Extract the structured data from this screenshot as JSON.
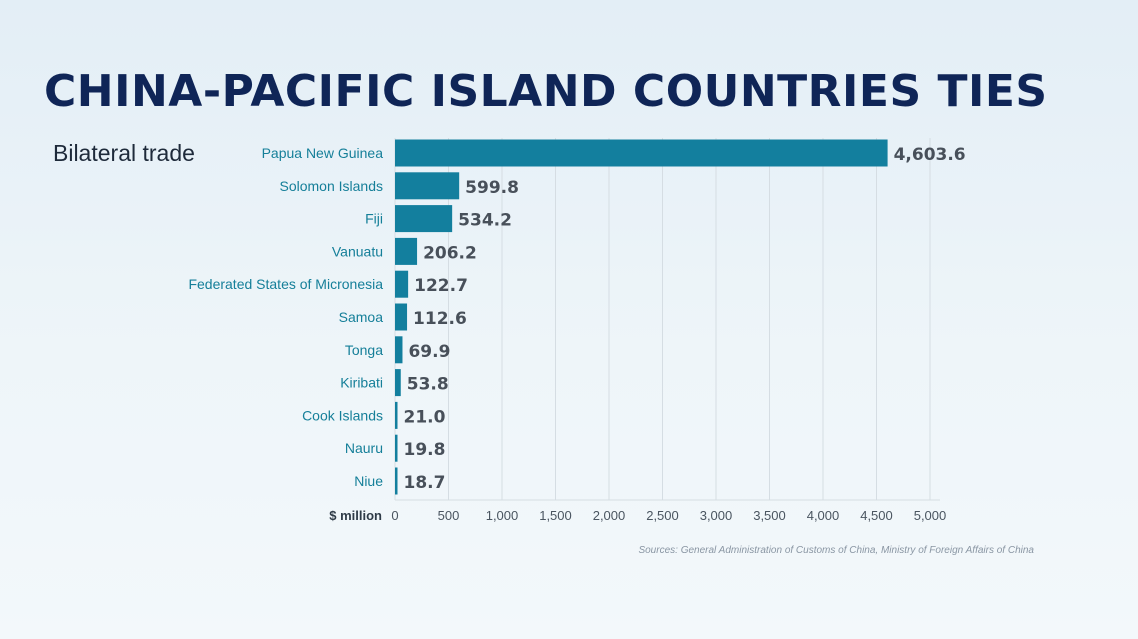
{
  "header": {
    "title": "CHINA-PACIFIC ISLAND COUNTRIES TIES",
    "subtitle": "Bilateral trade"
  },
  "colors": {
    "bar": "#137f9e",
    "category_text": "#157f99",
    "value_text": "#48505a",
    "grid": "#d5dde3"
  },
  "chart_data": {
    "type": "bar",
    "orientation": "horizontal",
    "categories": [
      "Papua New Guinea",
      "Solomon Islands",
      "Fiji",
      "Vanuatu",
      "Federated States of Micronesia",
      "Samoa",
      "Tonga",
      "Kiribati",
      "Cook Islands",
      "Nauru",
      "Niue"
    ],
    "values": [
      4603.6,
      599.8,
      534.2,
      206.2,
      122.7,
      112.6,
      69.9,
      53.8,
      21.0,
      19.8,
      18.7
    ],
    "value_labels": [
      "4,603.6",
      "599.8",
      "534.2",
      "206.2",
      "122.7",
      "112.6",
      "69.9",
      "53.8",
      "21.0",
      "19.8",
      "18.7"
    ],
    "xlabel": "$ million",
    "xlim": [
      0,
      5000
    ],
    "xticks": [
      0,
      500,
      1000,
      1500,
      2000,
      2500,
      3000,
      3500,
      4000,
      4500,
      5000
    ],
    "xtick_labels": [
      "0",
      "500",
      "1,000",
      "1,500",
      "2,000",
      "2,500",
      "3,000",
      "3,500",
      "4,000",
      "4,500",
      "5,000"
    ],
    "grid": true
  },
  "source": "Sources: General Administration of Customs of China, Ministry of Foreign Affairs of China"
}
